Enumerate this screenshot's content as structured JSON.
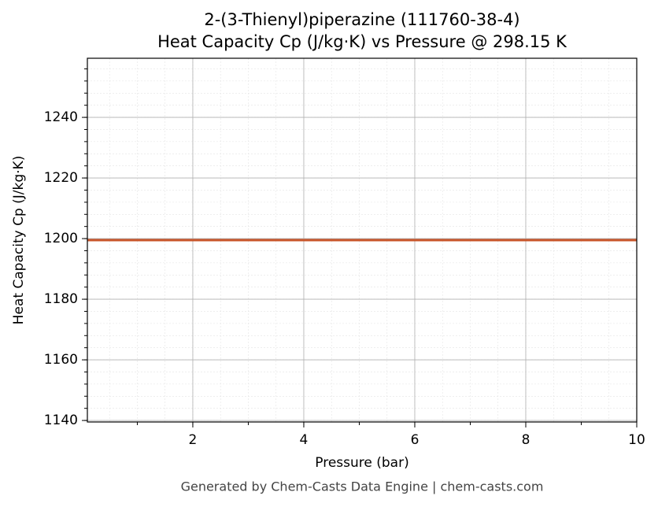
{
  "chart_data": {
    "type": "line",
    "title": "2-(3-Thienyl)piperazine (111760-38-4)",
    "subtitle": "Heat Capacity Cp (J/kg·K) vs Pressure @ 298.15 K",
    "x_label": "Pressure (bar)",
    "y_label": "Heat Capacity Cp (J/kg·K)",
    "x": [
      0.1,
      10
    ],
    "series": [
      {
        "name": "Heat Capacity Cp",
        "color": "#c8552a",
        "values": [
          1199.5,
          1199.5
        ]
      }
    ],
    "xlim": [
      0.1,
      10
    ],
    "xticks": [
      2,
      4,
      6,
      8,
      10
    ],
    "ylim": [
      1139.5,
      1259.5
    ],
    "yticks": [
      1140,
      1160,
      1180,
      1200,
      1220,
      1240
    ],
    "grid": true,
    "footer": "Generated by Chem-Casts Data Engine | chem-casts.com"
  }
}
